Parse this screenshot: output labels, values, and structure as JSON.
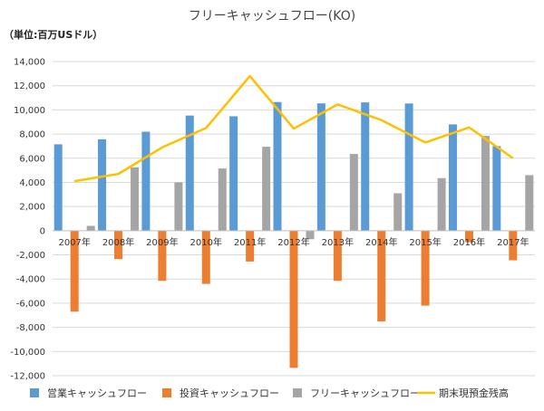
{
  "chart_data": {
    "type": "bar",
    "title": "フリーキャッシュフロー(KO)",
    "unit_label": "（単位:百万USドル）",
    "categories": [
      "2007年",
      "2008年",
      "2009年",
      "2010年",
      "2011年",
      "2012年",
      "2013年",
      "2014年",
      "2015年",
      "2016年",
      "2017年"
    ],
    "ylim": [
      -12000,
      14000
    ],
    "yticks": [
      14000,
      12000,
      10000,
      8000,
      6000,
      4000,
      2000,
      0,
      -2000,
      -4000,
      -6000,
      -8000,
      -10000,
      -12000
    ],
    "ytick_labels": [
      "14,000",
      "12,000",
      "10,000",
      "8,000",
      "6,000",
      "4,000",
      "2,000",
      "0",
      "-2,000",
      "-4,000",
      "-6,000",
      "-8,000",
      "-10,000",
      "-12,000"
    ],
    "grid": true,
    "legend_position": "bottom",
    "series": [
      {
        "name": "営業キャッシュフロー",
        "kind": "bar",
        "color": "#5B9BD5",
        "values": [
          7150,
          7570,
          8190,
          9530,
          9470,
          10650,
          10540,
          10620,
          10530,
          8800,
          7000
        ]
      },
      {
        "name": "投資キャッシュフロー",
        "kind": "bar",
        "color": "#ED7D31",
        "values": [
          -6700,
          -2350,
          -4150,
          -4400,
          -2550,
          -11350,
          -4150,
          -7500,
          -6200,
          -950,
          -2450
        ]
      },
      {
        "name": "フリーキャッシュフロー",
        "kind": "bar",
        "color": "#A5A5A5",
        "values": [
          400,
          5250,
          4000,
          5150,
          6950,
          -700,
          6350,
          3100,
          4350,
          7850,
          4600
        ]
      },
      {
        "name": "期末現預金残高",
        "kind": "line",
        "color": "#FFC000",
        "values": [
          4100,
          4700,
          6900,
          8500,
          12800,
          8450,
          10450,
          9150,
          7300,
          8550,
          6000
        ]
      }
    ]
  }
}
